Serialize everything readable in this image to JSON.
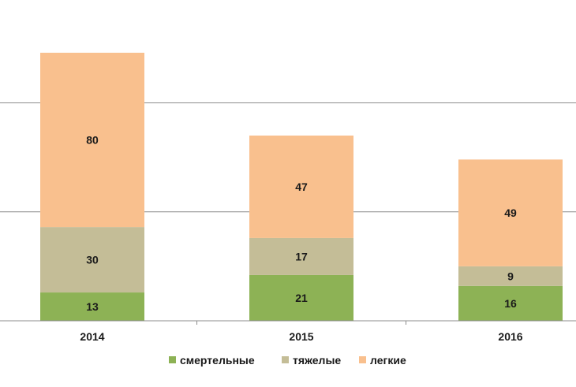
{
  "chart_data": {
    "type": "bar",
    "stacked": true,
    "categories": [
      "2014",
      "2015",
      "2016"
    ],
    "series": [
      {
        "name": "смертельные",
        "values": [
          13,
          21,
          16
        ],
        "color": "#8db255"
      },
      {
        "name": "тяжелые",
        "values": [
          30,
          17,
          9
        ],
        "color": "#c4bd97"
      },
      {
        "name": "легкие",
        "values": [
          80,
          47,
          49
        ],
        "color": "#f9c08e"
      }
    ],
    "ylim": [
      0,
      150
    ],
    "gridlines": [
      50,
      100,
      150
    ],
    "grid": true,
    "legend_position": "bottom",
    "show_y_tick_labels": false,
    "title": "",
    "xlabel": "",
    "ylabel": ""
  }
}
